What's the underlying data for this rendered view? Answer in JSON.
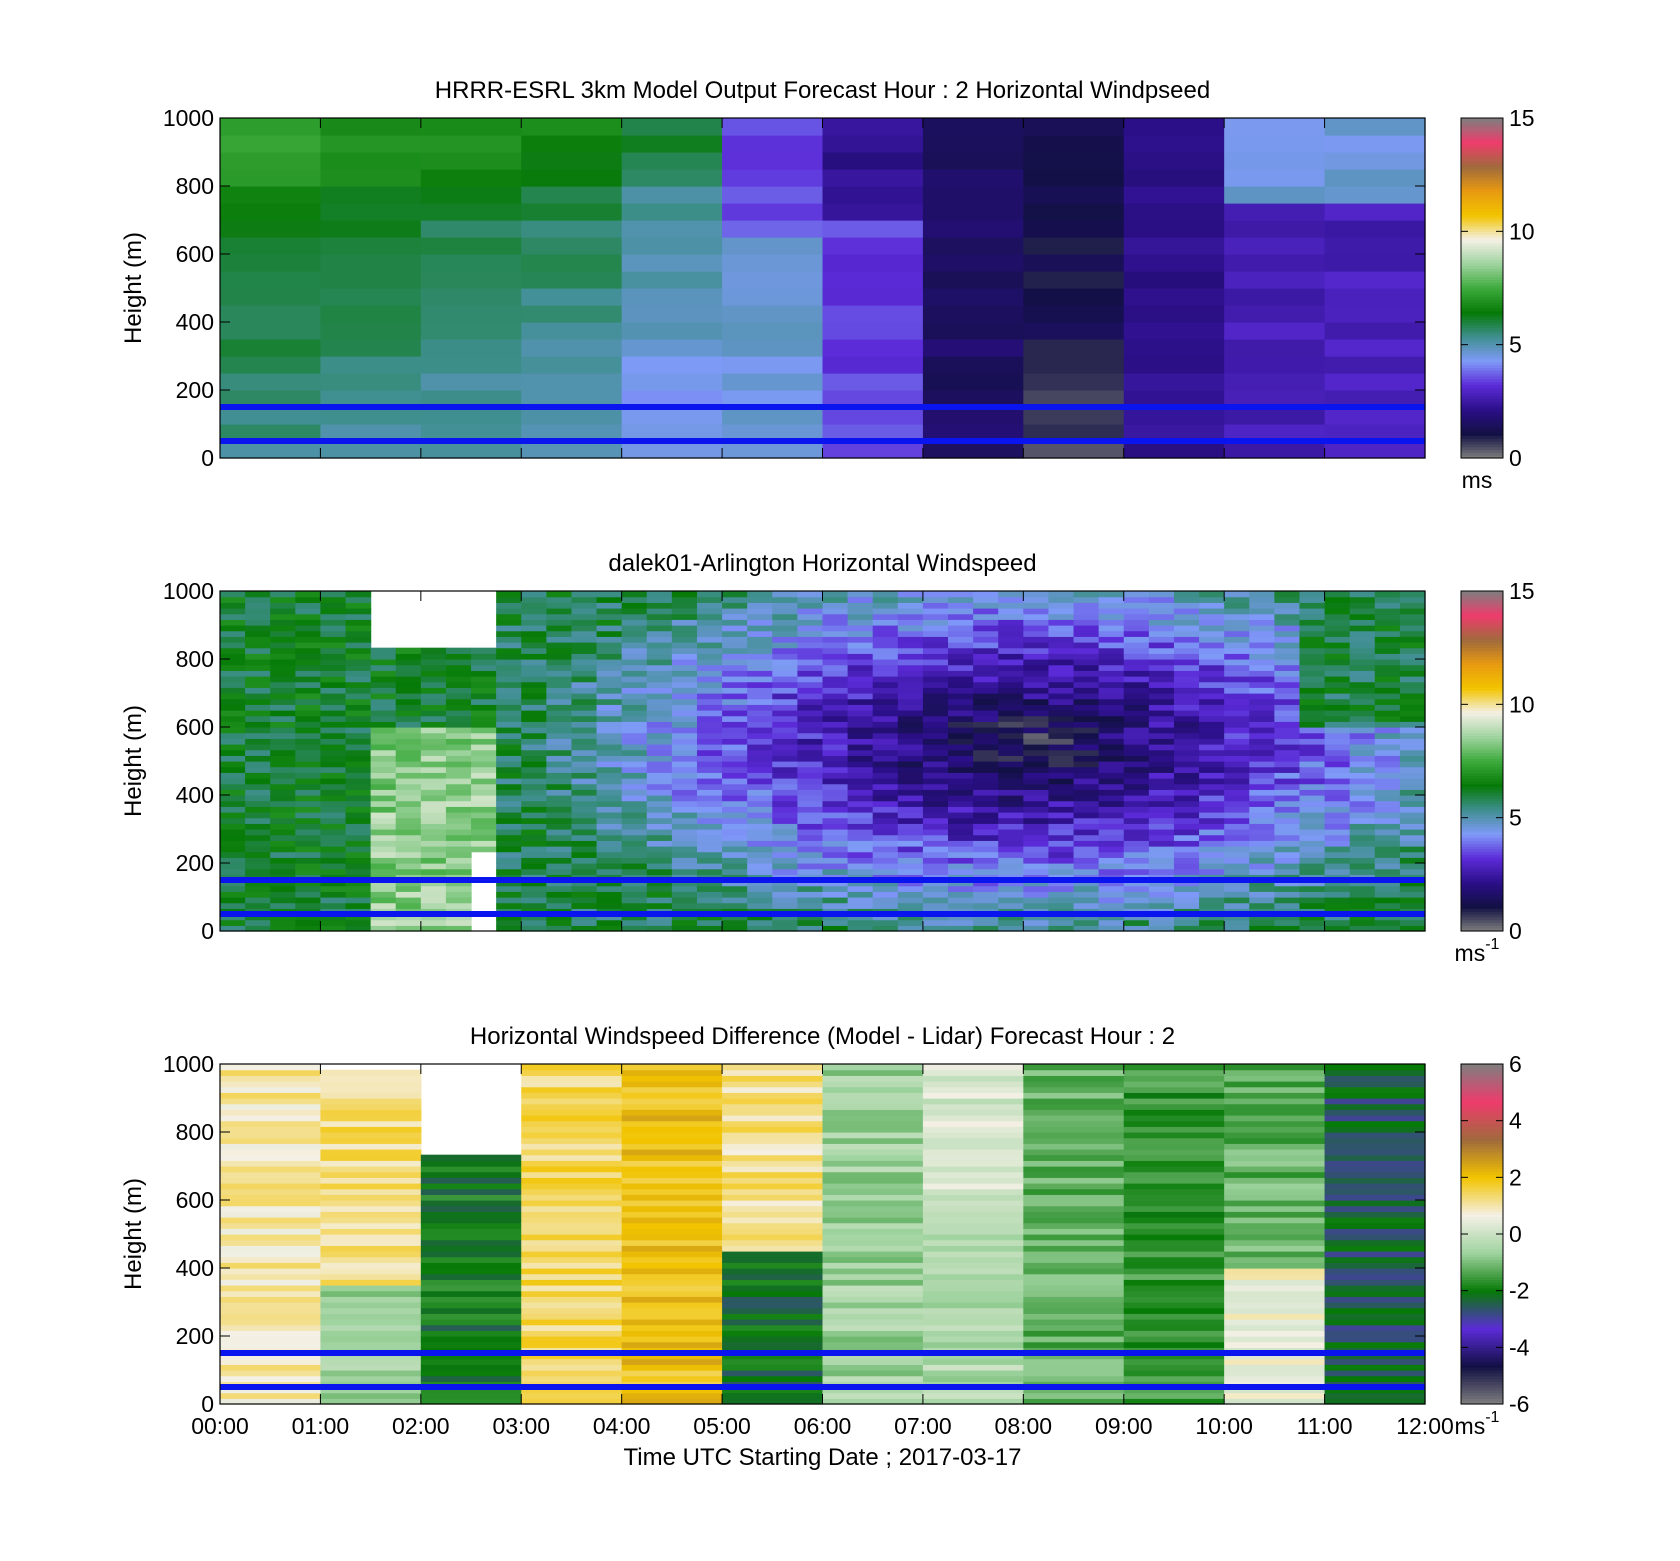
{
  "chart_data": [
    {
      "type": "heatmap",
      "title": "HRRR-ESRL 3km Model Output   Forecast Hour : 2 Horizontal Windpseed",
      "ylabel": "Height (m)",
      "xlabel": "",
      "ylim": [
        0,
        1000
      ],
      "xlim": [
        0,
        12
      ],
      "yticks": [
        "0",
        "200",
        "400",
        "600",
        "800",
        "1000"
      ],
      "xticks": [],
      "colorbar": {
        "min": 0,
        "max": 15,
        "ticks": [
          "0",
          "5",
          "10",
          "15"
        ],
        "unit": "ms",
        "unit_sup": "",
        "palette": "speed"
      },
      "reference_lines_m": [
        150,
        50
      ],
      "reference_line_color": "#0a14ee",
      "x_bins": 12,
      "y_bins": 20,
      "field": "model"
    },
    {
      "type": "heatmap",
      "title": "dalek01-Arlington  Horizontal Windspeed",
      "ylabel": "Height (m)",
      "xlabel": "",
      "ylim": [
        0,
        1000
      ],
      "xlim": [
        0,
        12
      ],
      "yticks": [
        "0",
        "200",
        "400",
        "600",
        "800",
        "1000"
      ],
      "xticks": [],
      "colorbar": {
        "min": 0,
        "max": 15,
        "ticks": [
          "0",
          "5",
          "10",
          "15"
        ],
        "unit": "ms",
        "unit_sup": "-1",
        "palette": "speed"
      },
      "reference_lines_m": [
        150,
        50
      ],
      "reference_line_color": "#0a14ee",
      "x_bins": 48,
      "y_bins": 60,
      "field": "lidar"
    },
    {
      "type": "heatmap",
      "title": "Horizontal Windspeed Difference (Model - Lidar) Forecast Hour : 2",
      "ylabel": "Height (m)",
      "xlabel": "Time UTC  Starting Date ; 2017-03-17",
      "ylim": [
        0,
        1000
      ],
      "xlim": [
        0,
        12
      ],
      "yticks": [
        "0",
        "200",
        "400",
        "600",
        "800",
        "1000"
      ],
      "xticks": [
        "00:00",
        "01:00",
        "02:00",
        "03:00",
        "04:00",
        "05:00",
        "06:00",
        "07:00",
        "08:00",
        "09:00",
        "10:00",
        "11:00",
        "12:00"
      ],
      "colorbar": {
        "min": -6,
        "max": 6,
        "ticks": [
          "-6",
          "-4",
          "-2",
          "0",
          "2",
          "4",
          "6"
        ],
        "unit": "ms",
        "unit_sup": "-1",
        "palette": "diff"
      },
      "reference_lines_m": [
        150,
        50
      ],
      "reference_line_color": "#0a14ee",
      "x_bins": 12,
      "y_bins": 60,
      "field": "difference"
    }
  ],
  "colors": {
    "speed_palette": [
      "#7f7f7f",
      "#121044",
      "#2b0f88",
      "#5b2bd8",
      "#7f9af8",
      "#3f8f8f",
      "#067a06",
      "#3caa3c",
      "#9fd39f",
      "#f4f0e6",
      "#f2c400",
      "#e89a10",
      "#a06a3c",
      "#ee3c6c",
      "#7f7f7f"
    ],
    "diff_palette": [
      "#7f7f7f",
      "#121044",
      "#5b2bd8",
      "#067a06",
      "#9fd39f",
      "#f4f0e6",
      "#f2c400",
      "#a06a3c",
      "#ee3c6c",
      "#7f7f7f"
    ]
  }
}
